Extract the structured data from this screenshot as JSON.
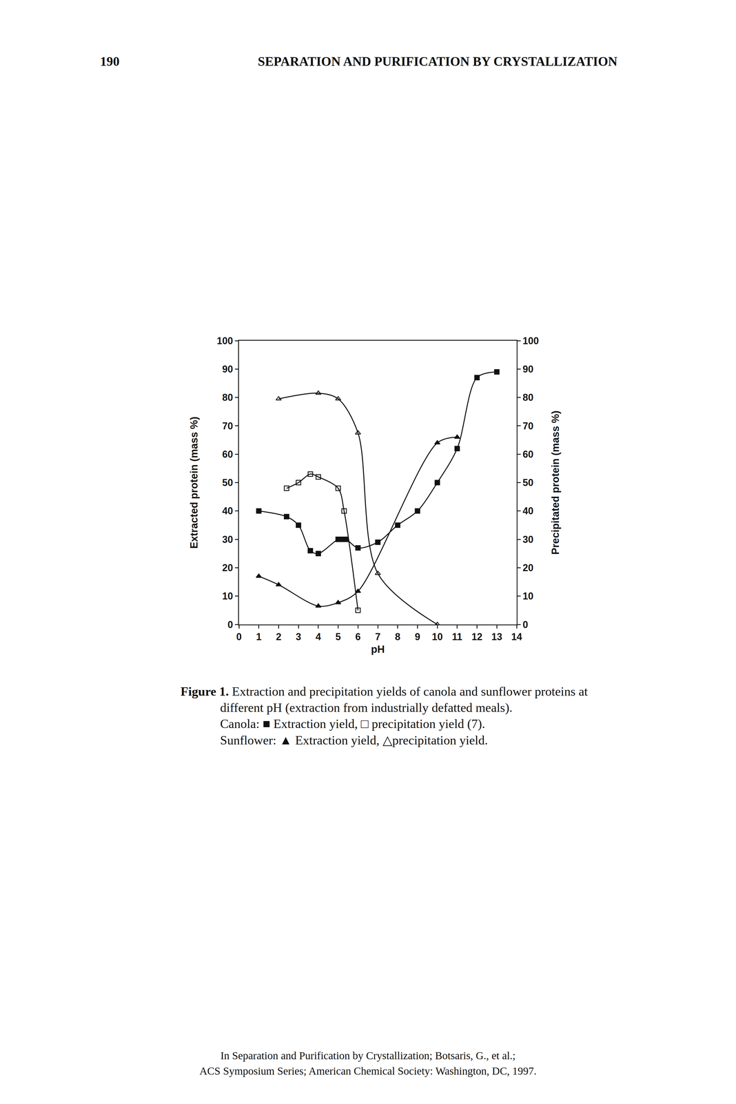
{
  "page": {
    "header": {
      "page_number": "190",
      "running_title": "SEPARATION AND PURIFICATION BY CRYSTALLIZATION"
    },
    "caption": {
      "label": "Figure 1.",
      "lines": [
        "Extraction and precipitation yields of canola and sunflower proteins at",
        "different pH (extraction from industrially defatted meals).",
        "Canola: ■ Extraction yield, □ precipitation yield (7).",
        "Sunflower: ▲ Extraction yield, △precipitation yield."
      ]
    },
    "footer": [
      "In Separation and Purification by Crystallization; Botsaris, G., et al.;",
      "ACS Symposium Series; American Chemical Society: Washington, DC, 1997."
    ]
  },
  "chart_data": {
    "type": "line",
    "x_label": "pH",
    "y_label": "Extracted protein (mass %)",
    "y2_label": "Precipitated protein (mass %)",
    "xlim": [
      0,
      14
    ],
    "xticks": [
      0,
      1,
      2,
      3,
      4,
      5,
      6,
      7,
      8,
      9,
      10,
      11,
      12,
      13,
      14
    ],
    "ylim": [
      0,
      100
    ],
    "yticks": [
      0,
      10,
      20,
      30,
      40,
      50,
      60,
      70,
      80,
      90,
      100
    ],
    "y2lim": [
      0,
      100
    ],
    "y2ticks": [
      0,
      10,
      20,
      30,
      40,
      50,
      60,
      70,
      80,
      90,
      100
    ],
    "grid": false,
    "series": [
      {
        "color": "#111111",
        "marker": "square",
        "line_style": "solid",
        "x": [
          1,
          2.4,
          3,
          3.6,
          4,
          5,
          5.2,
          5.4,
          6,
          7,
          8,
          9,
          10,
          11,
          12,
          13
        ],
        "values": [
          40,
          38,
          35,
          26,
          25,
          30,
          30,
          30,
          27,
          29,
          35,
          40,
          50,
          62,
          87,
          89
        ]
      },
      {
        "color": "#111111",
        "marker": "square-open",
        "line_style": "solid",
        "axis": "y2",
        "x": [
          2.4,
          3,
          3.6,
          4,
          5,
          5.3,
          6
        ],
        "values": [
          48,
          50,
          53,
          52,
          48,
          40,
          5
        ]
      },
      {
        "color": "#111111",
        "marker": "triangle-up",
        "line_style": "solid",
        "x": [
          1,
          2,
          4,
          5,
          6,
          10,
          11
        ],
        "values": [
          17,
          14,
          6.5,
          7.7,
          11.7,
          64,
          66
        ]
      },
      {
        "color": "#111111",
        "marker": "triangle-up-open",
        "line_style": "solid",
        "axis": "y2",
        "x": [
          2,
          4,
          5,
          6,
          7,
          10
        ],
        "values": [
          79.5,
          81.5,
          79.5,
          67.5,
          18,
          0
        ]
      }
    ]
  }
}
